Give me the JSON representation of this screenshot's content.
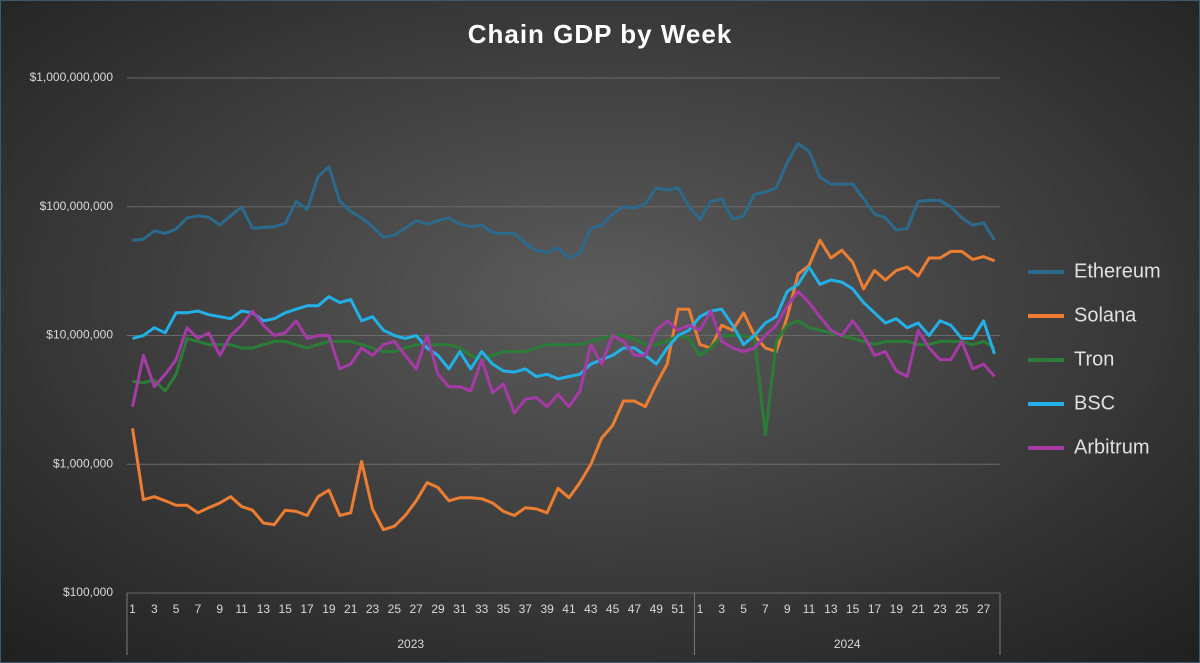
{
  "chart_data": {
    "type": "line",
    "title": "Chain GDP by Week",
    "log_scale": true,
    "grid": true,
    "legend": "right",
    "ylim": [
      100000,
      1000000000
    ],
    "yticks": [
      {
        "value": 100000,
        "label": "$100,000"
      },
      {
        "value": 1000000,
        "label": "$1,000,000"
      },
      {
        "value": 10000000,
        "label": "$10,000,000"
      },
      {
        "value": 100000000,
        "label": "$100,000,000"
      },
      {
        "value": 1000000000,
        "label": "$1,000,000,000"
      }
    ],
    "categories": [
      "1",
      null,
      "3",
      null,
      "5",
      null,
      "7",
      null,
      "9",
      null,
      "11",
      null,
      "13",
      null,
      "15",
      null,
      "17",
      null,
      "19",
      null,
      "21",
      null,
      "23",
      null,
      "25",
      null,
      "27",
      null,
      "29",
      null,
      "31",
      null,
      "33",
      null,
      "35",
      null,
      "37",
      null,
      "39",
      null,
      "41",
      null,
      "43",
      null,
      "45",
      null,
      "47",
      null,
      "49",
      null,
      "51",
      null,
      "1",
      null,
      "3",
      null,
      "5",
      null,
      "7",
      null,
      "9",
      null,
      "11",
      null,
      "13",
      null,
      "15",
      null,
      "17",
      null,
      "19",
      null,
      "21",
      null,
      "23",
      null,
      "25",
      null,
      "27",
      null
    ],
    "groups": [
      {
        "label": "2023",
        "size": 52
      },
      {
        "label": "2024",
        "size": 28
      }
    ],
    "series": [
      {
        "name": "Ethereum",
        "color": "#2b6a8c",
        "values": [
          55000000,
          56000000,
          65000000,
          62000000,
          67000000,
          82000000,
          85000000,
          83000000,
          72000000,
          85000000,
          100000000,
          68000000,
          69000000,
          70000000,
          74000000,
          110000000,
          95000000,
          170000000,
          205000000,
          110000000,
          92000000,
          82000000,
          70000000,
          58000000,
          60000000,
          68000000,
          78000000,
          73000000,
          78000000,
          82000000,
          73000000,
          70000000,
          72000000,
          63000000,
          62000000,
          62000000,
          52000000,
          46000000,
          44000000,
          48000000,
          40000000,
          44000000,
          68000000,
          72000000,
          88000000,
          100000000,
          98000000,
          105000000,
          140000000,
          135000000,
          140000000,
          100000000,
          80000000,
          110000000,
          115000000,
          80000000,
          85000000,
          125000000,
          130000000,
          140000000,
          220000000,
          310000000,
          270000000,
          170000000,
          150000000,
          150000000,
          150000000,
          115000000,
          88000000,
          82000000,
          66000000,
          68000000,
          110000000,
          112000000,
          112000000,
          100000000,
          82000000,
          72000000,
          75000000,
          55000000
        ]
      },
      {
        "name": "Solana",
        "color": "#ed7d31",
        "values": [
          1900000,
          530000,
          560000,
          520000,
          480000,
          480000,
          420000,
          460000,
          500000,
          560000,
          470000,
          440000,
          350000,
          340000,
          440000,
          430000,
          400000,
          560000,
          630000,
          400000,
          420000,
          1050000,
          450000,
          310000,
          330000,
          400000,
          520000,
          720000,
          660000,
          520000,
          550000,
          550000,
          540000,
          500000,
          430000,
          400000,
          460000,
          450000,
          420000,
          650000,
          550000,
          720000,
          1000000,
          1600000,
          2000000,
          3100000,
          3100000,
          2800000,
          4200000,
          6000000,
          16000000,
          16000000,
          8500000,
          8000000,
          12000000,
          11000000,
          15000000,
          10000000,
          8000000,
          7500000,
          14000000,
          30000000,
          35000000,
          55000000,
          40000000,
          46000000,
          37000000,
          23000000,
          32000000,
          27000000,
          32000000,
          34000000,
          29000000,
          40000000,
          40000000,
          45000000,
          45000000,
          39000000,
          41000000,
          38000000
        ]
      },
      {
        "name": "Tron",
        "color": "#2a7d36",
        "values": [
          4400000,
          4300000,
          4500000,
          3700000,
          5000000,
          9500000,
          9000000,
          8500000,
          8500000,
          8500000,
          8000000,
          8000000,
          8500000,
          9000000,
          9000000,
          8500000,
          8000000,
          8500000,
          9000000,
          9000000,
          9000000,
          8500000,
          8000000,
          7500000,
          7500000,
          8000000,
          8500000,
          8500000,
          8500000,
          8500000,
          8000000,
          7000000,
          6500000,
          7000000,
          7500000,
          7500000,
          7500000,
          8000000,
          8500000,
          8500000,
          8500000,
          8500000,
          9000000,
          9500000,
          10000000,
          10000000,
          9500000,
          8500000,
          8500000,
          9000000,
          10000000,
          9500000,
          7000000,
          8000000,
          10000000,
          10000000,
          10000000,
          9500000,
          1700000,
          9000000,
          12000000,
          13000000,
          11500000,
          11000000,
          10500000,
          10000000,
          9500000,
          9000000,
          8500000,
          9000000,
          9000000,
          9000000,
          8500000,
          8500000,
          9000000,
          9000000,
          9000000,
          8500000,
          9000000,
          8000000
        ]
      },
      {
        "name": "BSC",
        "color": "#22b0e6",
        "values": [
          9500000,
          10000000,
          11500000,
          10500000,
          15000000,
          15000000,
          15500000,
          14500000,
          14000000,
          13500000,
          15500000,
          15000000,
          13000000,
          13500000,
          15000000,
          16000000,
          17000000,
          17000000,
          20000000,
          18000000,
          19000000,
          13000000,
          14000000,
          11000000,
          10000000,
          9500000,
          10000000,
          8000000,
          7000000,
          5500000,
          7500000,
          5500000,
          7500000,
          6000000,
          5300000,
          5200000,
          5500000,
          4800000,
          5000000,
          4600000,
          4800000,
          5000000,
          6000000,
          6500000,
          7000000,
          8000000,
          8000000,
          7000000,
          6000000,
          8000000,
          10000000,
          11000000,
          14000000,
          15500000,
          16000000,
          12000000,
          8500000,
          10000000,
          12500000,
          14000000,
          22000000,
          25000000,
          34000000,
          25000000,
          27000000,
          26000000,
          23000000,
          18000000,
          15000000,
          12500000,
          13500000,
          11500000,
          12500000,
          10000000,
          13000000,
          12000000,
          9500000,
          9500000,
          13000000,
          7200000
        ]
      },
      {
        "name": "Arbitrum",
        "color": "#a63aa6",
        "values": [
          2800000,
          7000000,
          4000000,
          5000000,
          6500000,
          11500000,
          9500000,
          10500000,
          7000000,
          10000000,
          12000000,
          15500000,
          12000000,
          10000000,
          10500000,
          13000000,
          9500000,
          10000000,
          10000000,
          5500000,
          6000000,
          8000000,
          7000000,
          8500000,
          9000000,
          7000000,
          5500000,
          10000000,
          5000000,
          4000000,
          4000000,
          3700000,
          6500000,
          3600000,
          4200000,
          2500000,
          3200000,
          3300000,
          2800000,
          3500000,
          2800000,
          3700000,
          8500000,
          6000000,
          10000000,
          9000000,
          7000000,
          7000000,
          11000000,
          13000000,
          11000000,
          12000000,
          11000000,
          15500000,
          9000000,
          8000000,
          7500000,
          8000000,
          10000000,
          12000000,
          17000000,
          22000000,
          18000000,
          14000000,
          11000000,
          10000000,
          13000000,
          10000000,
          7000000,
          7500000,
          5300000,
          4800000,
          11000000,
          8000000,
          6500000,
          6500000,
          9000000,
          5500000,
          6000000,
          4800000
        ]
      }
    ]
  }
}
